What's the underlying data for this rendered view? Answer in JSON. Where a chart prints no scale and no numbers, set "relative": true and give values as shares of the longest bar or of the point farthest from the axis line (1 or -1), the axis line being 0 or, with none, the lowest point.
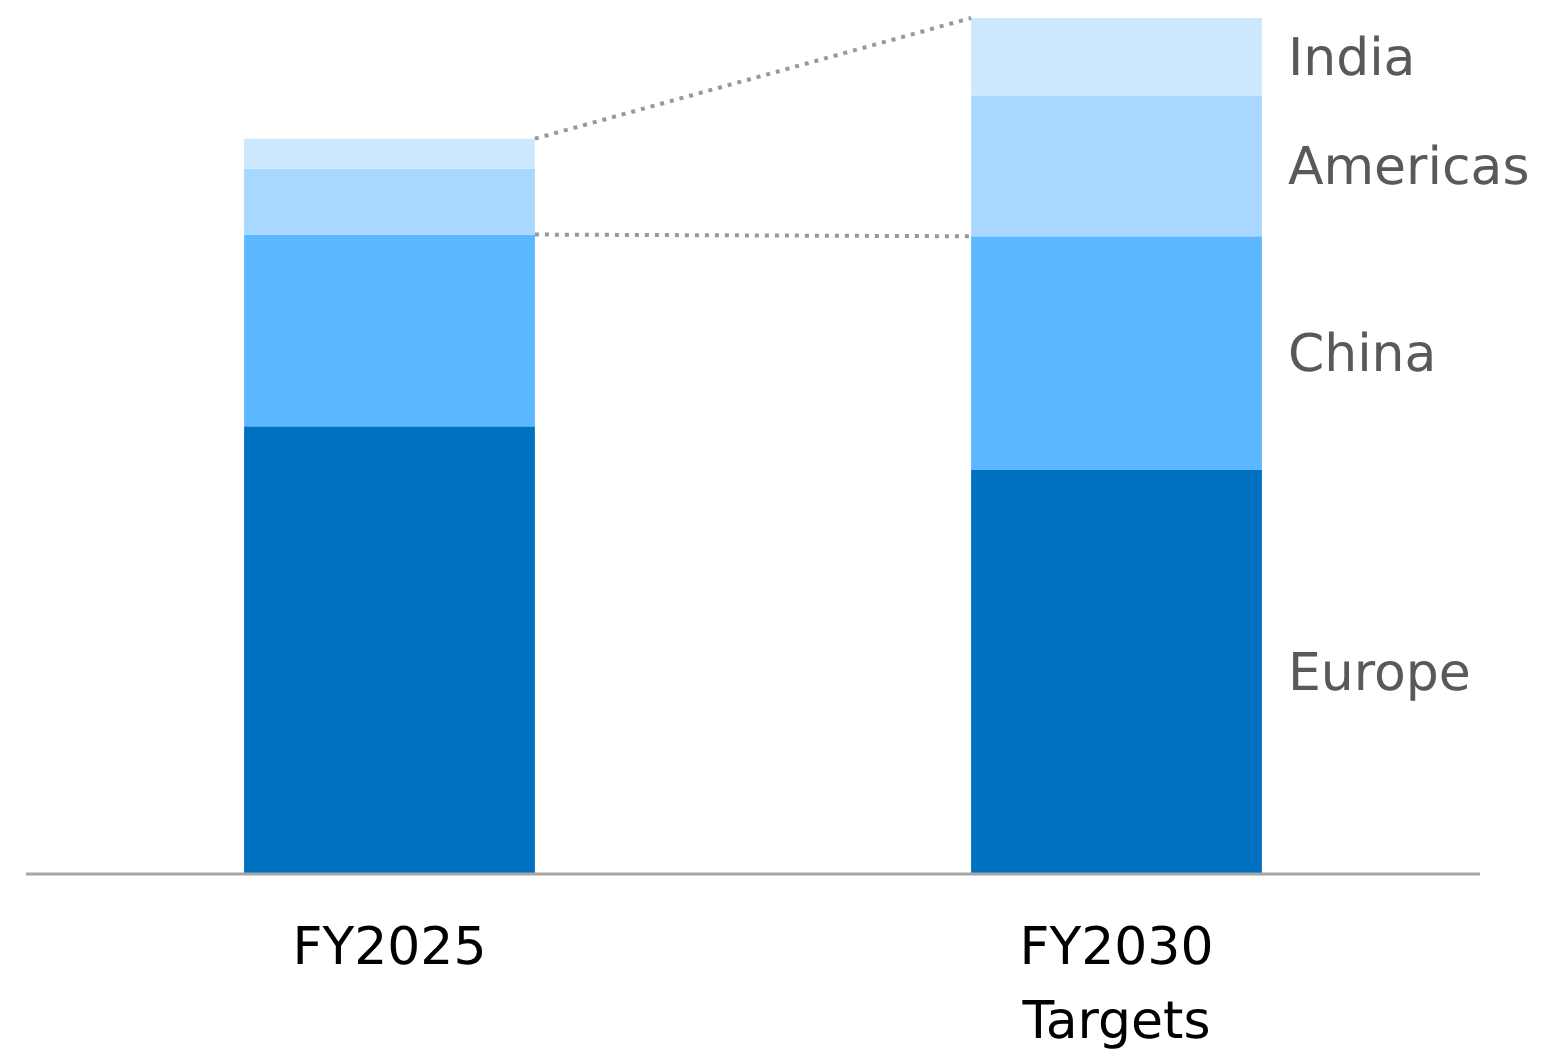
{
  "chart_data": {
    "type": "bar",
    "stacked": true,
    "relative": true,
    "categories": [
      "FY2025",
      "FY2030\nTargets"
    ],
    "series": [
      {
        "name": "Europe",
        "color": "#0070c0",
        "values": [
          0.523,
          0.472
        ]
      },
      {
        "name": "China",
        "color": "#5bb8ff",
        "values": [
          0.224,
          0.273
        ]
      },
      {
        "name": "Americas",
        "color": "#a8d8ff",
        "values": [
          0.077,
          0.164
        ]
      },
      {
        "name": "India",
        "color": "#cce8ff",
        "values": [
          0.035,
          0.091
        ]
      }
    ]
  }
}
